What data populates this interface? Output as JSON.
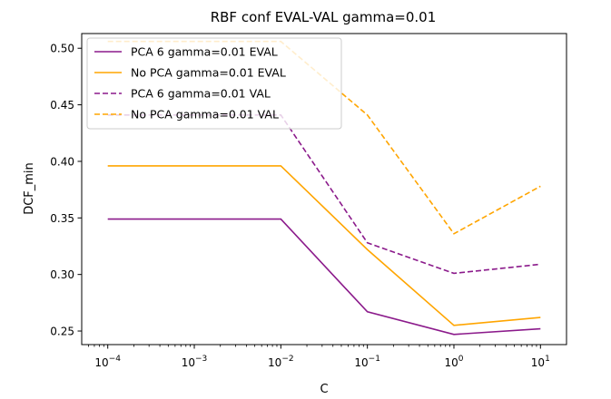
{
  "chart_data": {
    "type": "line",
    "title": "RBF conf EVAL-VAL gamma=0.01",
    "xlabel": "C",
    "ylabel": "DCF_min",
    "xscale": "log",
    "xlim": [
      5e-05,
      20
    ],
    "ylim": [
      0.238,
      0.513
    ],
    "x_ticks": [
      {
        "value": 0.0001,
        "base": "10",
        "exp": "−4"
      },
      {
        "value": 0.001,
        "base": "10",
        "exp": "−3"
      },
      {
        "value": 0.01,
        "base": "10",
        "exp": "−2"
      },
      {
        "value": 0.1,
        "base": "10",
        "exp": "−1"
      },
      {
        "value": 1,
        "base": "10",
        "exp": "0"
      },
      {
        "value": 10,
        "base": "10",
        "exp": "1"
      }
    ],
    "y_ticks": [
      "0.25",
      "0.30",
      "0.35",
      "0.40",
      "0.45",
      "0.50"
    ],
    "grid": false,
    "legend_position": "top-left",
    "x": [
      0.0001,
      0.01,
      0.1,
      1,
      10
    ],
    "series": [
      {
        "name": "PCA 6 gamma=0.01 EVAL",
        "color": "#8b1a8b",
        "dash": "solid",
        "values": [
          0.349,
          0.349,
          0.267,
          0.247,
          0.252
        ]
      },
      {
        "name": "No PCA gamma=0.01 EVAL",
        "color": "#ffa500",
        "dash": "solid",
        "values": [
          0.396,
          0.396,
          0.322,
          0.255,
          0.262
        ]
      },
      {
        "name": "PCA 6 gamma=0.01 VAL",
        "color": "#8b1a8b",
        "dash": "dashed",
        "values": [
          0.441,
          0.441,
          0.328,
          0.301,
          0.309
        ]
      },
      {
        "name": "No PCA gamma=0.01 VAL",
        "color": "#ffa500",
        "dash": "dashed",
        "values": [
          0.506,
          0.506,
          0.441,
          0.336,
          0.378
        ]
      }
    ]
  }
}
